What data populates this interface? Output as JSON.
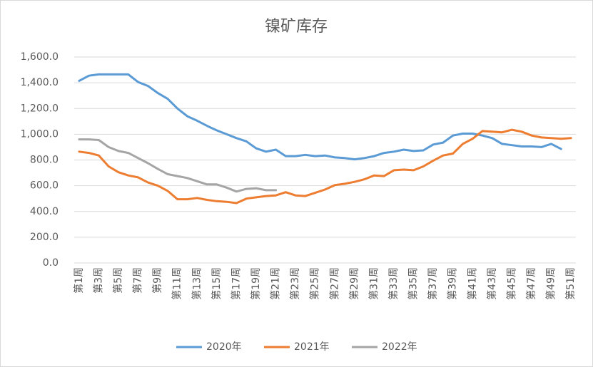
{
  "chart_data": {
    "type": "line",
    "title": "镍矿库存",
    "categories": [
      "第1周",
      null,
      "第3周",
      null,
      "第5周",
      null,
      "第7周",
      null,
      "第9周",
      null,
      "第11周",
      null,
      "第13周",
      null,
      "第15周",
      null,
      "第17周",
      null,
      "第19周",
      null,
      "第21周",
      null,
      "第23周",
      null,
      "第25周",
      null,
      "第27周",
      null,
      "第29周",
      null,
      "第31周",
      null,
      "第33周",
      null,
      "第35周",
      null,
      "第37周",
      null,
      "第39周",
      null,
      "第41周",
      null,
      "第43周",
      null,
      "第45周",
      null,
      "第47周",
      null,
      "第49周",
      null,
      "第51周"
    ],
    "series": [
      {
        "name": "2020年",
        "color": "#5b9bd5",
        "values": [
          1415,
          1455,
          1465,
          1465,
          1465,
          1465,
          1405,
          1375,
          1320,
          1275,
          1200,
          1140,
          1105,
          1065,
          1030,
          1000,
          970,
          945,
          890,
          865,
          880,
          830,
          830,
          840,
          830,
          835,
          820,
          815,
          805,
          815,
          830,
          855,
          865,
          880,
          870,
          875,
          920,
          935,
          990,
          1005,
          1005,
          990,
          970,
          925,
          915,
          905,
          905,
          900,
          925,
          885,
          null
        ]
      },
      {
        "name": "2021年",
        "color": "#ed7d31",
        "values": [
          865,
          855,
          835,
          750,
          705,
          680,
          665,
          625,
          600,
          560,
          495,
          495,
          505,
          490,
          480,
          475,
          465,
          500,
          510,
          520,
          525,
          550,
          525,
          520,
          545,
          570,
          605,
          615,
          630,
          650,
          680,
          675,
          720,
          725,
          720,
          750,
          795,
          835,
          850,
          925,
          965,
          1025,
          1020,
          1015,
          1035,
          1020,
          990,
          975,
          970,
          965,
          970
        ]
      },
      {
        "name": "2022年",
        "color": "#a5a5a5",
        "values": [
          960,
          960,
          955,
          900,
          870,
          855,
          815,
          775,
          730,
          690,
          675,
          660,
          635,
          610,
          610,
          585,
          555,
          575,
          580,
          565,
          565,
          null,
          null,
          null,
          null,
          null,
          null,
          null,
          null,
          null,
          null,
          null,
          null,
          null,
          null,
          null,
          null,
          null,
          null,
          null,
          null,
          null,
          null,
          null,
          null,
          null,
          null,
          null,
          null,
          null,
          null
        ]
      }
    ],
    "ylim": [
      0,
      1600
    ],
    "yticks": [
      {
        "value": 0,
        "label": "0.0"
      },
      {
        "value": 200,
        "label": "200.0"
      },
      {
        "value": 400,
        "label": "400.0"
      },
      {
        "value": 600,
        "label": "600.0"
      },
      {
        "value": 800,
        "label": "800.0"
      },
      {
        "value": 1000,
        "label": "1,000.0"
      },
      {
        "value": 1200,
        "label": "1,200.0"
      },
      {
        "value": 1400,
        "label": "1,400.0"
      },
      {
        "value": 1600,
        "label": "1,600.0"
      }
    ],
    "grid": true,
    "legend": "bottom"
  }
}
